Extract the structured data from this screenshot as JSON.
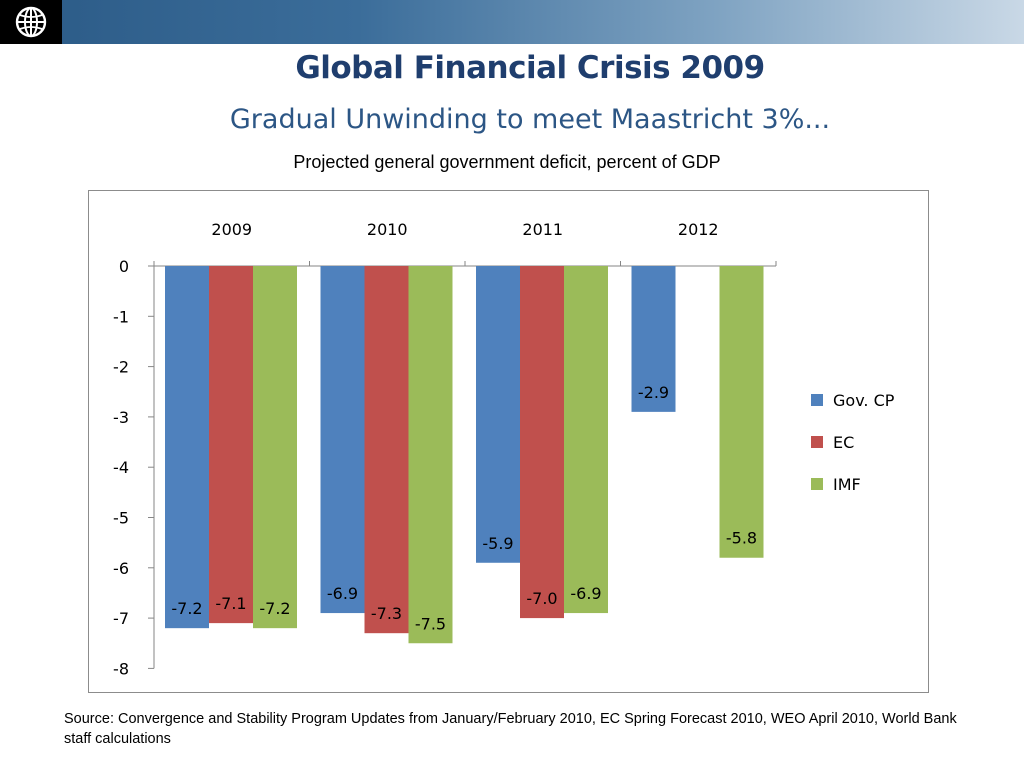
{
  "header": {
    "logo_icon": "globe-icon"
  },
  "slide": {
    "title": "Global Financial Crisis 2009",
    "subtitle": "Gradual Unwinding to meet Maastricht 3%...",
    "source": "Source: Convergence  and Stability Program Updates from January/February 2010, EC Spring Forecast 2010, WEO April 2010, World Bank staff calculations"
  },
  "chart_data": {
    "type": "bar",
    "title": "Projected general government deficit, percent of GDP",
    "categories": [
      "2009",
      "2010",
      "2011",
      "2012"
    ],
    "series": [
      {
        "name": "Gov. CP",
        "color": "#4f81bd",
        "values": [
          -7.2,
          -6.9,
          -5.9,
          -2.9
        ]
      },
      {
        "name": "EC",
        "color": "#c0504d",
        "values": [
          -7.1,
          -7.3,
          -7.0,
          null
        ]
      },
      {
        "name": "IMF",
        "color": "#9bbb59",
        "values": [
          -7.2,
          -7.5,
          -6.9,
          -5.8
        ]
      }
    ],
    "data_labels": [
      [
        "-7.2",
        "-6.9",
        "-5.9",
        "-2.9"
      ],
      [
        "-7.1",
        "-7.3",
        "-7.0",
        ""
      ],
      [
        "-7.2",
        "-7.5",
        "-6.9",
        "-5.8"
      ]
    ],
    "ylim": [
      -8,
      0
    ],
    "yticks": [
      "0",
      "-1",
      "-2",
      "-3",
      "-4",
      "-5",
      "-6",
      "-7",
      "-8"
    ],
    "category_axis_position": "top",
    "legend_position": "right",
    "grid": false
  }
}
